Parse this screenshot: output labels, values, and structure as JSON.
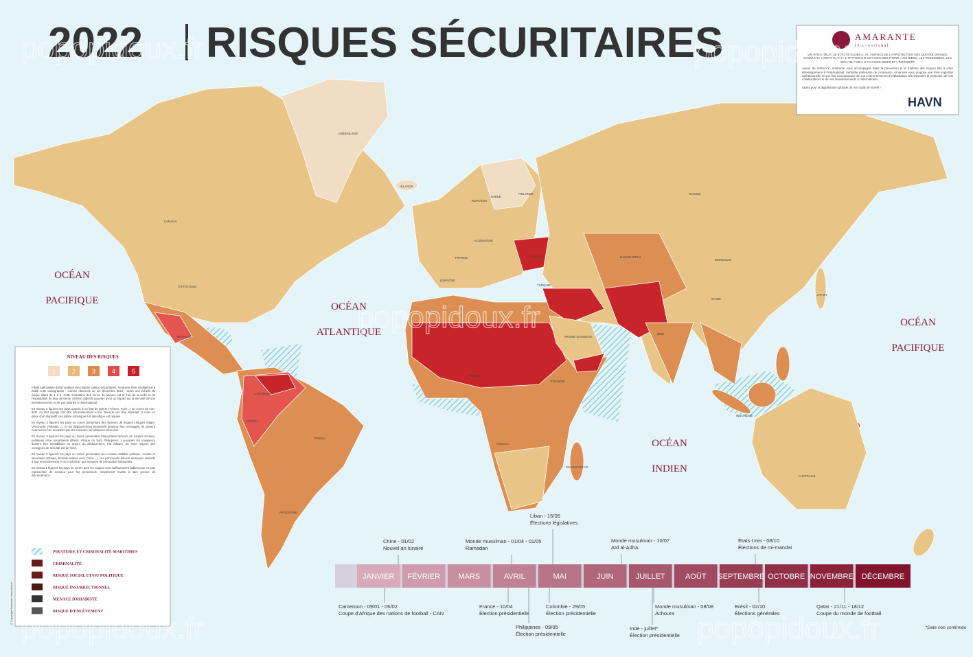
{
  "header": {
    "year": "2022",
    "title": "RISQUES SÉCURITAIRES"
  },
  "watermark": "popopidoux.fr",
  "oceans": [
    {
      "lines": [
        "OCÉAN",
        "PACIFIQUE"
      ]
    },
    {
      "lines": [
        "OCÉAN",
        "ATLANTIQUE"
      ]
    },
    {
      "lines": [
        "OCÉAN",
        "INDIEN"
      ]
    },
    {
      "lines": [
        "OCÉAN",
        "PACIFIQUE"
      ]
    }
  ],
  "country_labels": [
    "GREENLAND",
    "ISLANDE",
    "CANADA",
    "ÉTATS-UNIS",
    "MEXIQUE",
    "BRÉSIL",
    "ARGENTINE",
    "PÉROU",
    "COLOMBIE",
    "RUSSIE",
    "CHINE",
    "MONGOLIE",
    "KAZAKHSTAN",
    "INDE",
    "AUSTRALIE",
    "FRANCE",
    "ESPAGNE",
    "ALLEMAGNE",
    "UKRAINE",
    "TURQUIE",
    "ARABIE SAOUDITE",
    "ÉTHIOPIE",
    "NIGERIA",
    "ANGOLA",
    "JAPON",
    "INDONÉSIE",
    "SUÈDE",
    "NORVÈGE",
    "FINLANDE",
    "MADAGASCAR"
  ],
  "company": {
    "name": "AMARANTE",
    "sub": "International",
    "tagline": "UN OPÉRATEUR DE SÛRETÉ GLOBALE AU SERVICE DE LA PROTECTION DES QUATRE GRANDS SEGMENTS CONSTITUANT LE PATRIMOINE DES ORGANISATIONS : LES BIENS, LES PERSONNES, LES INFORMATIONS & TECHNOLOGIES ET L'INTÉGRITÉ",
    "text": "Acteur de référence, Amarante vous accompagne dans la prévention et la maîtrise des risques liés à votre développement à l'international. Véritable partenaire de croissance, Amarante vous propose une forte expertise opérationnelle et une fine connaissance de vos environnements d'implantation afin d'assurer la protection de vos collaborateurs et de vos investissements à l'international.",
    "cta": "Optez pour la digitalisation globale de vos outils de sûreté !",
    "partner": "HAVN"
  },
  "legend": {
    "title": "NIVEAU DES RISQUES",
    "levels": [
      "1",
      "2",
      "3",
      "4",
      "5"
    ],
    "paragraphs": [
      "Filiale spécialisée dans l'analyse des risques politico-sécuritaires, Amarante Risk Intelligence a établi cette cartographie - comme observée au 1er décembre 2021 - selon une échelle du risque allant de 1 à 5. Cette évaluation des zones de risques est le fruit de la veille et de l'exploitation de plus de trente critères objectifs pouvant avoir un impact sur la sécurité de vos investissements et de vos salariés à l'international.",
      "En niveau 5 figurent les pays soumis à un état de guerre (Yémen, Syrie...) ou zones de non-droit, où tout voyage doit être nécessairement exclu. Dans le cas d'un impératif, la mise en place d'un dispositif sécuritaire conséquent et spécifique est requise.",
      "En niveau 4 figurent les pays ou zones présentant des facteurs de risques critiques (Niger, Venezuela, Pakistan...). Si les déplacements essentiels peuvent être envisagés, ils doivent néanmoins être encadrés par des mesures sécuritaires renforcées.",
      "En niveau 3 figurent les pays ou zones présentant d'importants facteurs de risques sociaux, politiques et/ou sécuritaires (Brésil, Afrique du Sud, Philippines...) auxquels les voyageurs doivent être sensibilisés en amont du déplacement. Par ailleurs, un strict respect des consignes de sécurité est de mise.",
      "En niveau 2 figurent les pays ou zones présentant une certaine stabilité politique, sociale et sécuritaire (Ghana, Émirats arabes unis, Chine...). Les personnels doivent demeurer attentifs à leur environnement et se conformer aux mesures de précaution habituelles.",
      "En niveau 1 figurent les pays ou zones dont les risques sont suffisamment faibles pour ne pas représenter de menace pour les personnels, simplement invités à faire preuve de discernement."
    ],
    "items": [
      "PIRATERIE ET CRIMINALITÉ MARITIMES",
      "CRIMINALITÉ",
      "RISQUE SOCIAL ET/OU POLITIQUE",
      "RISQUE INSURRECTIONNEL",
      "MENACE DJIHADISTE",
      "RISQUE D'ENLÈVEMENT"
    ],
    "copyright": "© Copyright Amarante International"
  },
  "timeline": {
    "months": [
      "JANVIER",
      "FÉVRIER",
      "MARS",
      "AVRIL",
      "MAI",
      "JUIN",
      "JUILLET",
      "AOÛT",
      "SEPTEMBRE",
      "OCTOBRE",
      "NOVEMBRE",
      "DÉCEMBRE"
    ],
    "events": [
      {
        "label": "Chine - 01/02",
        "detail": "Nouvel an lunaire"
      },
      {
        "label": "Monde musulman - 01/04 - 01/05",
        "detail": "Ramadan"
      },
      {
        "label": "Liban - 15/05",
        "detail": "Élections législatives"
      },
      {
        "label": "Monde musulman - 10/07",
        "detail": "Aïd al-Adha"
      },
      {
        "label": "États-Unis - 08/10",
        "detail": "Élections de mi-mandat"
      },
      {
        "label": "Cameroun - 09/01 - 06/02",
        "detail": "Coupe d'Afrique des nations de football - CAN"
      },
      {
        "label": "France - 10/04",
        "detail": "Élection présidentielle"
      },
      {
        "label": "Philippines - 09/05",
        "detail": "Élection présidentielle"
      },
      {
        "label": "Colombie - 29/05",
        "detail": "Élection présidentielle"
      },
      {
        "label": "Inde - juillet*",
        "detail": "Élection présidentielle"
      },
      {
        "label": "Monde musulman - 08/08",
        "detail": "Achoura"
      },
      {
        "label": "Brésil - 02/10",
        "detail": "Élections générales"
      },
      {
        "label": "Qatar - 21/11 - 18/12",
        "detail": "Coupe du monde de football"
      }
    ],
    "footnote": "*Date non confirmée"
  }
}
